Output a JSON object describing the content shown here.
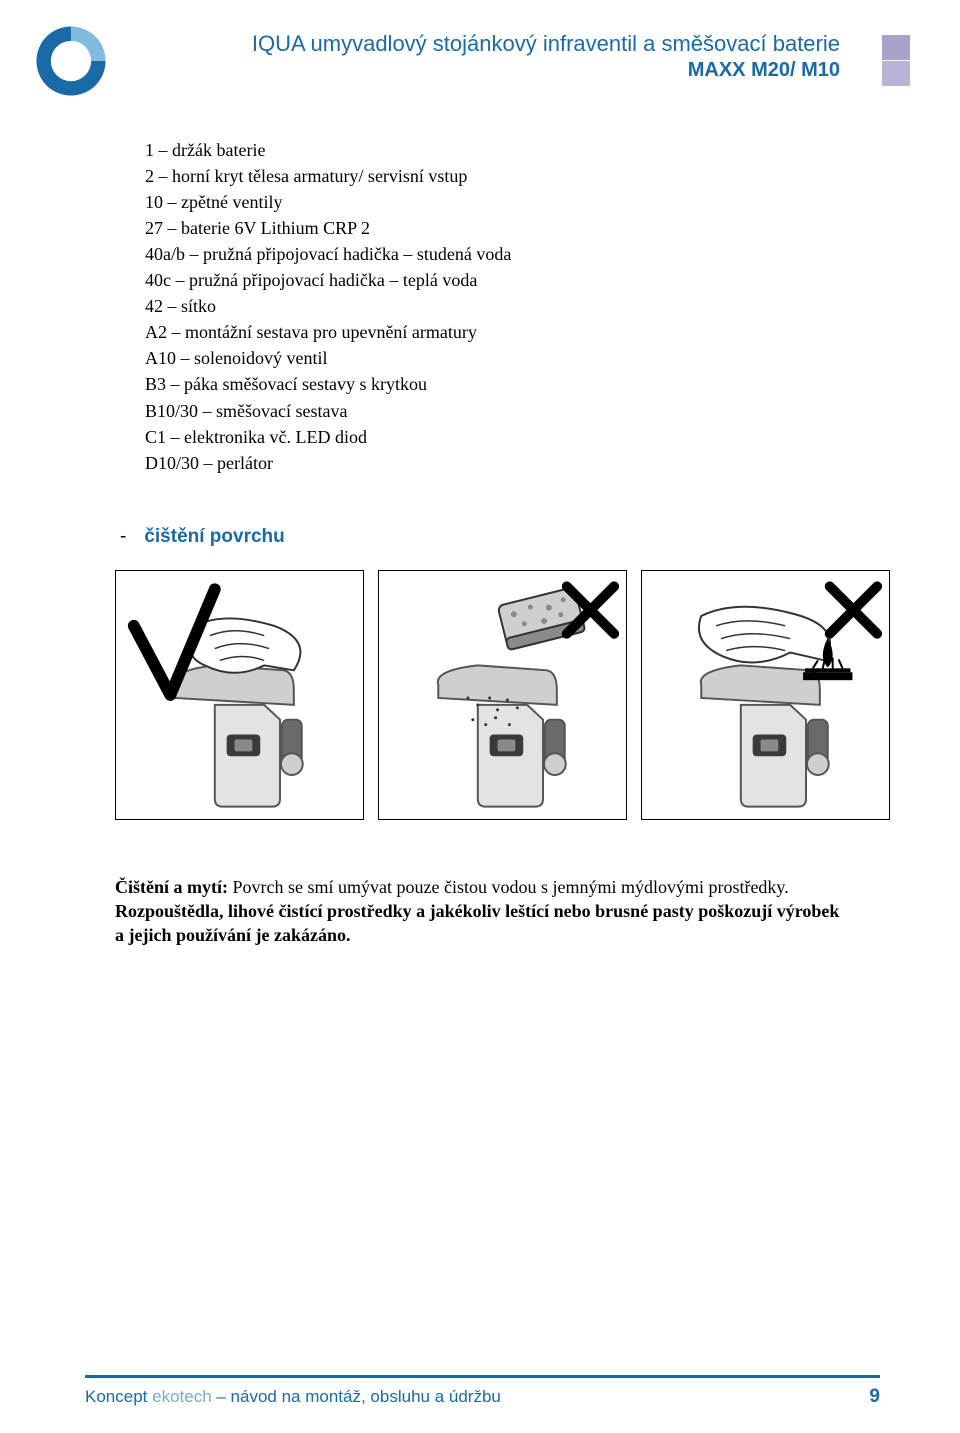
{
  "header": {
    "title_main": "IQUA umyvadlový stojánkový infraventil a směšovací baterie",
    "title_sub": "MAXX M20/ M10",
    "title_color": "#1a6aa8",
    "squares": [
      "#a7a4cc",
      "#b6b3d6"
    ]
  },
  "logo": {
    "outer_color": "#1a6aa8",
    "inner_color": "#7fbce0"
  },
  "parts_list": [
    "1 – držák baterie",
    "2 – horní kryt tělesa armatury/ servisní vstup",
    "10 – zpětné ventily",
    "27 – baterie 6V Lithium CRP 2",
    "40a/b – pružná připojovací hadička – studená voda",
    "40c – pružná připojovací hadička – teplá voda",
    "42 – sítko",
    "A2 – montážní sestava pro upevnění armatury",
    "A10 – solenoidový ventil",
    "B3 – páka směšovací sestavy s krytkou",
    "B10/30 – směšovací sestava",
    "C1 – elektronika vč. LED diod",
    "D10/30 – perlátor"
  ],
  "section": {
    "dash": "-",
    "heading": "čištění povrchu"
  },
  "pictograms": {
    "faucet_body_fill": "#e3e3e3",
    "faucet_head_fill": "#cfcfcf",
    "faucet_stroke": "#555555",
    "knob_dark": "#6a6a6a",
    "sensor_fill": "#3a3a3a",
    "mark_stroke": "#000000"
  },
  "cleaning": {
    "lead": "Čištění a mytí: ",
    "line1_rest": "Povrch se smí umývat pouze čistou vodou s jemnými mýdlovými prostředky.",
    "line2": "Rozpouštědla, lihové čistící prostředky a jakékoliv leštící nebo brusné pasty poškozují výrobek",
    "line3": "a jejich používání je zakázáno."
  },
  "footer": {
    "brand1": "Koncept ",
    "brand2": "ekotech",
    "rest": " – návod na montáž, obsluhu a údržbu",
    "page": "9",
    "rule_color": "#1a6aa8"
  }
}
